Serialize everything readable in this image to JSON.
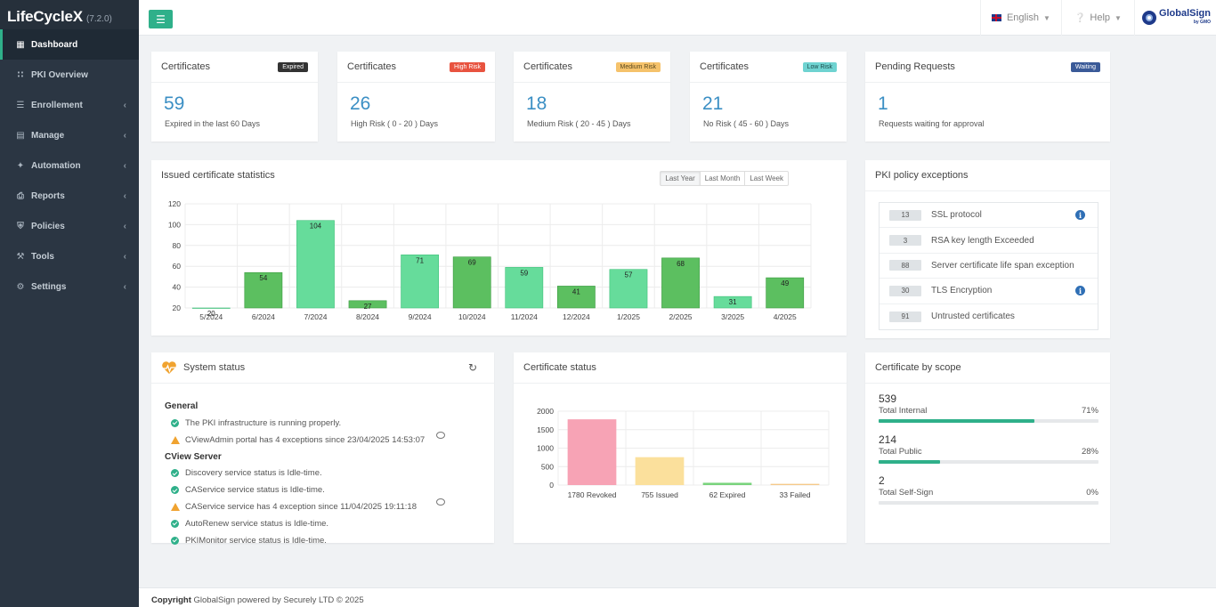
{
  "app": {
    "name": "LifeCycleX",
    "version": "(7.2.0)"
  },
  "sidebar": {
    "items": [
      {
        "label": "Dashboard",
        "icon": "grid-icon",
        "active": true,
        "chevron": false
      },
      {
        "label": "PKI Overview",
        "icon": "sitemap-icon",
        "active": false,
        "chevron": false
      },
      {
        "label": "Enrollement",
        "icon": "list-icon",
        "active": false,
        "chevron": true
      },
      {
        "label": "Manage",
        "icon": "table-icon",
        "active": false,
        "chevron": true
      },
      {
        "label": "Automation",
        "icon": "magic-wand-icon",
        "active": false,
        "chevron": true
      },
      {
        "label": "Reports",
        "icon": "print-icon",
        "active": false,
        "chevron": true
      },
      {
        "label": "Policies",
        "icon": "shield-icon",
        "active": false,
        "chevron": true
      },
      {
        "label": "Tools",
        "icon": "wrench-icon",
        "active": false,
        "chevron": true
      },
      {
        "label": "Settings",
        "icon": "gear-icon",
        "active": false,
        "chevron": true
      }
    ]
  },
  "topbar": {
    "language": "English",
    "help": "Help",
    "logo_text": "GlobalSign",
    "logo_sub": "by GMO"
  },
  "stats": [
    {
      "title": "Certificates",
      "badge": "Expired",
      "badge_color": "#333333",
      "badge_text_color": "#ffffff",
      "value": "59",
      "subtitle": "Expired in the last 60 Days"
    },
    {
      "title": "Certificates",
      "badge": "High Risk",
      "badge_color": "#e8533f",
      "badge_text_color": "#ffffff",
      "value": "26",
      "subtitle": "High Risk ( 0 - 20 ) Days"
    },
    {
      "title": "Certificates",
      "badge": "Medium Risk",
      "badge_color": "#f5c26b",
      "badge_text_color": "#5a4a20",
      "value": "18",
      "subtitle": "Medium Risk ( 20 - 45 ) Days"
    },
    {
      "title": "Certificates",
      "badge": "Low Risk",
      "badge_color": "#6fd3d1",
      "badge_text_color": "#1d4c4b",
      "value": "21",
      "subtitle": "No Risk ( 45 - 60 ) Days"
    },
    {
      "title": "Pending Requests",
      "badge": "Waiting",
      "badge_color": "#3a5a98",
      "badge_text_color": "#ffffff",
      "value": "1",
      "subtitle": "Requests waiting for approval"
    }
  ],
  "issued_chart": {
    "title": "Issued certificate statistics",
    "ranges": [
      "Last Year",
      "Last Month",
      "Last Week"
    ],
    "active_range": "Last Year"
  },
  "exceptions": {
    "title": "PKI policy exceptions",
    "items": [
      {
        "count": "13",
        "label": "SSL protocol",
        "info": true
      },
      {
        "count": "3",
        "label": "RSA key length Exceeded",
        "info": false
      },
      {
        "count": "88",
        "label": "Server certificate life span exception",
        "info": false
      },
      {
        "count": "30",
        "label": "TLS Encryption",
        "info": true
      },
      {
        "count": "91",
        "label": "Untrusted certificates",
        "info": false
      }
    ]
  },
  "system_status": {
    "title": "System status",
    "sections": [
      {
        "name": "General",
        "lines": [
          {
            "status": "ok",
            "text": "The PKI infrastructure is running properly.",
            "chat": false
          },
          {
            "status": "warn",
            "text": "CViewAdmin portal has 4 exceptions since 23/04/2025 14:53:07",
            "chat": true
          }
        ]
      },
      {
        "name": "CView Server",
        "lines": [
          {
            "status": "ok",
            "text": "Discovery service status is Idle-time.",
            "chat": false
          },
          {
            "status": "ok",
            "text": "CAService service status is Idle-time.",
            "chat": false
          },
          {
            "status": "warn",
            "text": "CAService service has 4 exception since 11/04/2025 19:11:18",
            "chat": true
          },
          {
            "status": "ok",
            "text": "AutoRenew service status is Idle-time.",
            "chat": false
          },
          {
            "status": "ok",
            "text": "PKIMonitor service status is Idle-time.",
            "chat": false
          }
        ]
      }
    ]
  },
  "cert_status": {
    "title": "Certificate status"
  },
  "scope": {
    "title": "Certificate by scope",
    "items": [
      {
        "value": "539",
        "label": "Total Internal",
        "percent": "71%",
        "fraction": 0.71
      },
      {
        "value": "214",
        "label": "Total Public",
        "percent": "28%",
        "fraction": 0.28
      },
      {
        "value": "2",
        "label": "Total Self-Sign",
        "percent": "0%",
        "fraction": 0.0
      }
    ]
  },
  "footer": {
    "bold": "Copyright",
    "text": " GlobalSign powered by Securely LTD © 2025"
  },
  "chart_data": [
    {
      "type": "bar",
      "title": "Issued certificate statistics",
      "categories": [
        "5/2024",
        "6/2024",
        "7/2024",
        "8/2024",
        "9/2024",
        "10/2024",
        "11/2024",
        "12/2024",
        "1/2025",
        "2/2025",
        "3/2025",
        "4/2025"
      ],
      "values": [
        20,
        54,
        104,
        27,
        71,
        69,
        59,
        41,
        57,
        68,
        31,
        49
      ],
      "colors": [
        "#6fd79a",
        "#5cbf60",
        "#66dc9b",
        "#5cbf60",
        "#66dc9b",
        "#5cbf60",
        "#66dc9b",
        "#5cbf60",
        "#66dc9b",
        "#5cbf60",
        "#66dc9b",
        "#5cbf60"
      ],
      "yticks": [
        20,
        40,
        60,
        80,
        100,
        120
      ],
      "ylim": [
        20,
        120
      ],
      "grid": true
    },
    {
      "type": "bar",
      "title": "Certificate status",
      "categories": [
        "1780 Revoked",
        "755 Issued",
        "62 Expired",
        "33 Failed"
      ],
      "values": [
        1780,
        755,
        62,
        33
      ],
      "colors": [
        "#f7a3b5",
        "#fbe09c",
        "#79d37d",
        "#f5c98a"
      ],
      "yticks": [
        0,
        500,
        1000,
        1500,
        2000
      ],
      "ylim": [
        0,
        2000
      ],
      "grid": true
    }
  ]
}
